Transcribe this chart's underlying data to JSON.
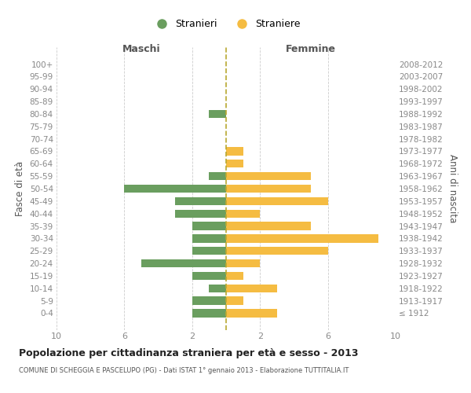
{
  "age_groups": [
    "100+",
    "95-99",
    "90-94",
    "85-89",
    "80-84",
    "75-79",
    "70-74",
    "65-69",
    "60-64",
    "55-59",
    "50-54",
    "45-49",
    "40-44",
    "35-39",
    "30-34",
    "25-29",
    "20-24",
    "15-19",
    "10-14",
    "5-9",
    "0-4"
  ],
  "birth_years": [
    "≤ 1912",
    "1913-1917",
    "1918-1922",
    "1923-1927",
    "1928-1932",
    "1933-1937",
    "1938-1942",
    "1943-1947",
    "1948-1952",
    "1953-1957",
    "1958-1962",
    "1963-1967",
    "1968-1972",
    "1973-1977",
    "1978-1982",
    "1983-1987",
    "1988-1992",
    "1993-1997",
    "1998-2002",
    "2003-2007",
    "2008-2012"
  ],
  "males": [
    0,
    0,
    0,
    0,
    1,
    0,
    0,
    0,
    0,
    1,
    6,
    3,
    3,
    2,
    2,
    2,
    5,
    2,
    1,
    2,
    2
  ],
  "females": [
    0,
    0,
    0,
    0,
    0,
    0,
    0,
    1,
    1,
    5,
    5,
    6,
    2,
    5,
    9,
    6,
    2,
    1,
    3,
    1,
    3
  ],
  "male_color": "#6a9e5f",
  "female_color": "#f5bc42",
  "dashed_line_color": "#b8a830",
  "title": "Popolazione per cittadinanza straniera per età e sesso - 2013",
  "subtitle": "COMUNE DI SCHEGGIA E PASCELUPO (PG) - Dati ISTAT 1° gennaio 2013 - Elaborazione TUTTITALIA.IT",
  "left_label": "Maschi",
  "right_label": "Femmine",
  "ylabel_left": "Fasce di età",
  "ylabel_right": "Anni di nascita",
  "legend_male": "Stranieri",
  "legend_female": "Straniere",
  "xlim": 10,
  "background_color": "#ffffff",
  "grid_color": "#cccccc"
}
